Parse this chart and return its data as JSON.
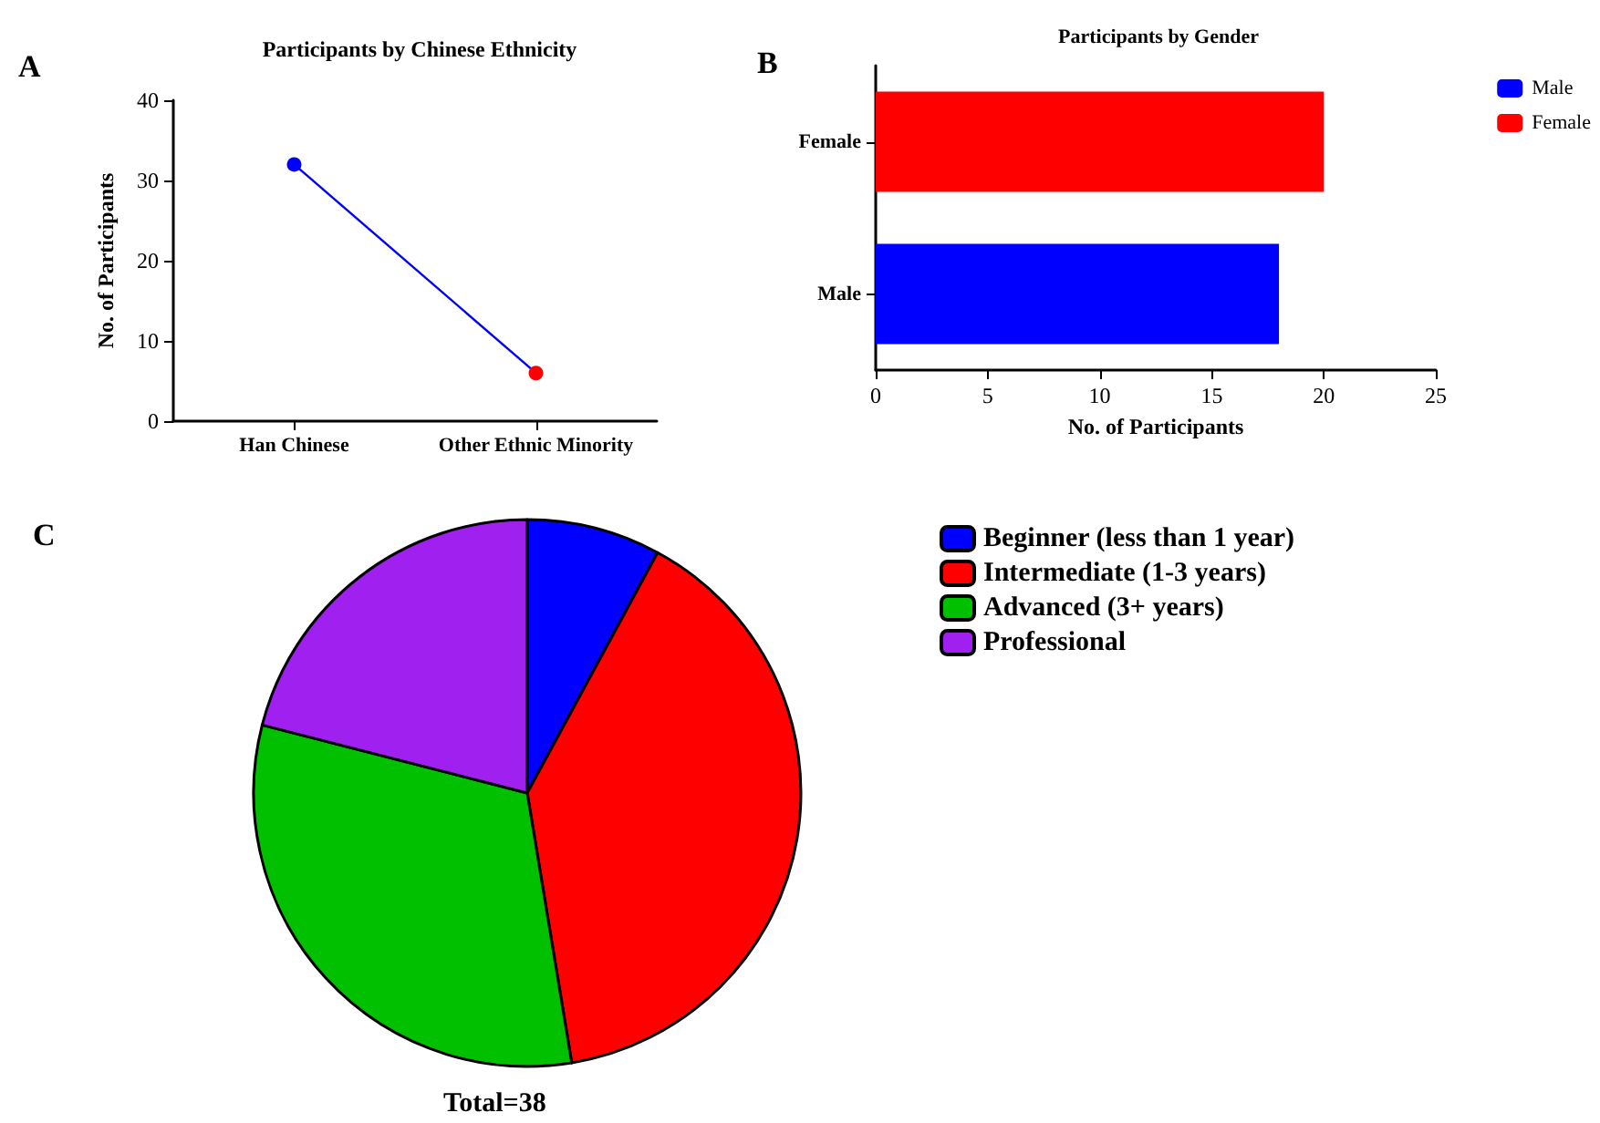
{
  "chart_data": [
    {
      "type": "line",
      "title": "Participants by Chinese Ethnicity",
      "annotations": [
        "A"
      ],
      "ylabel": "No. of Participants",
      "categories": [
        "Han Chinese",
        "Other Ethnic Minority"
      ],
      "series": [
        {
          "color": "#0000ff",
          "colors": [
            "#0000ff",
            "#ff0000"
          ],
          "values": [
            32,
            6
          ]
        }
      ],
      "ylim": [
        0,
        40
      ],
      "yticks": [
        0,
        10,
        20,
        30,
        40
      ],
      "marker": "circle",
      "legend": false
    },
    {
      "type": "bar",
      "orientation": "horizontal",
      "stacked": true,
      "title": "Participants by Gender",
      "annotations": [
        "B"
      ],
      "xlabel": "No. of Participants",
      "categories": [
        "Female",
        "Male"
      ],
      "series": [
        {
          "name": "Male",
          "color": "#0000ff",
          "values": [
            null,
            18
          ]
        },
        {
          "name": "Female",
          "color": "#ff0000",
          "values": [
            20,
            null
          ]
        }
      ],
      "xlim": [
        0,
        25
      ],
      "xticks": [
        0,
        5,
        10,
        15,
        20,
        25
      ],
      "legend": "right"
    },
    {
      "type": "pie",
      "annotations": [
        "C",
        "Total=38"
      ],
      "categories": [
        "Beginner (less than 1 year)",
        "Intermediate (1-3 years)",
        "Advanced (3+ years)",
        "Professional"
      ],
      "values": [
        7.9,
        39.5,
        31.6,
        21.0
      ],
      "colors": [
        "#0000ff",
        "#ff0000",
        "#00c000",
        "#a020f0"
      ],
      "legend": "right"
    }
  ]
}
